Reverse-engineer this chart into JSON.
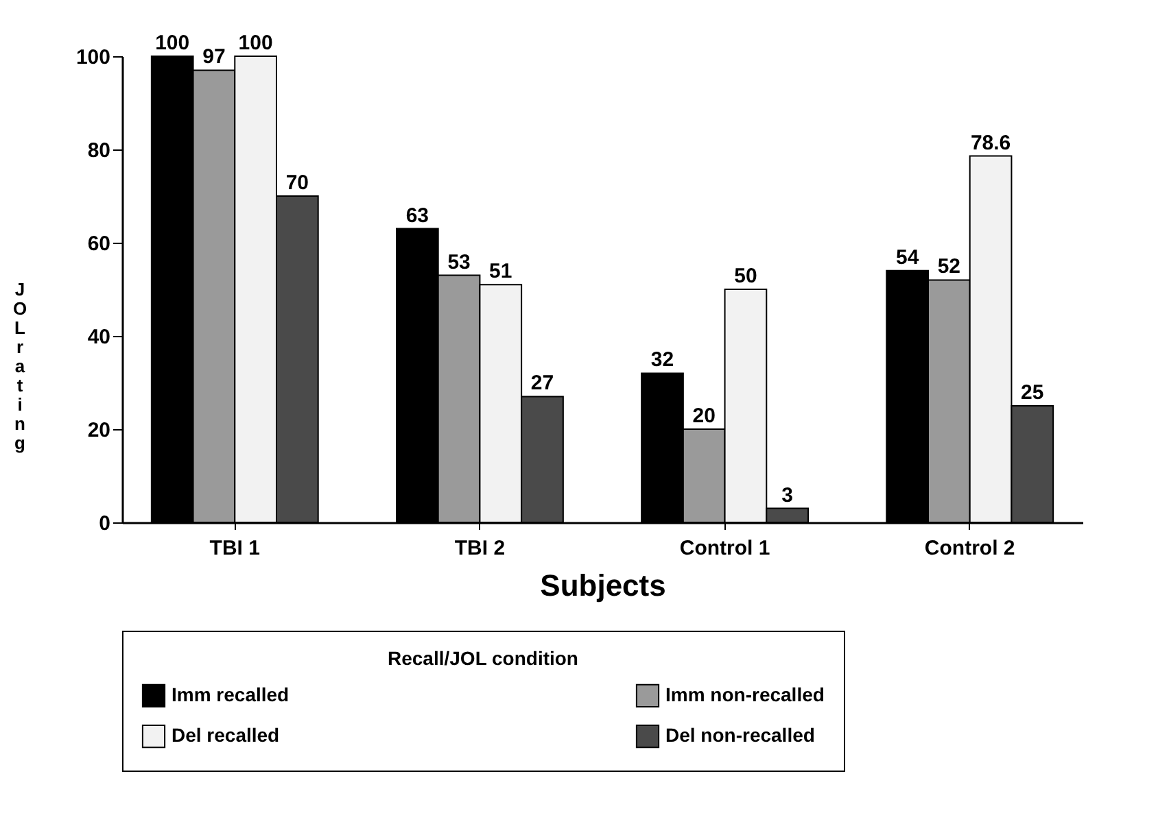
{
  "chart_data": {
    "type": "bar",
    "xlabel": "Subjects",
    "ylabel": "JOL rating",
    "legend_title": "Recall/JOL condition",
    "categories": [
      "TBI 1",
      "TBI 2",
      "Control 1",
      "Control 2"
    ],
    "series": [
      {
        "name": "Imm recalled",
        "color": "#000000",
        "values": [
          100,
          63,
          32,
          54
        ]
      },
      {
        "name": "Imm non-recalled",
        "color": "#9a9a9a",
        "values": [
          97,
          53,
          20,
          52
        ]
      },
      {
        "name": "Del recalled",
        "color": "#f2f2f2",
        "values": [
          100,
          51,
          50,
          78.6
        ]
      },
      {
        "name": "Del non-recalled",
        "color": "#4a4a4a",
        "values": [
          70,
          27,
          3,
          25
        ]
      }
    ],
    "ylim": [
      0,
      100
    ],
    "yticks": [
      0,
      20,
      40,
      60,
      80,
      100
    ],
    "data_labels": true,
    "legend": "bottom",
    "grid": false
  }
}
